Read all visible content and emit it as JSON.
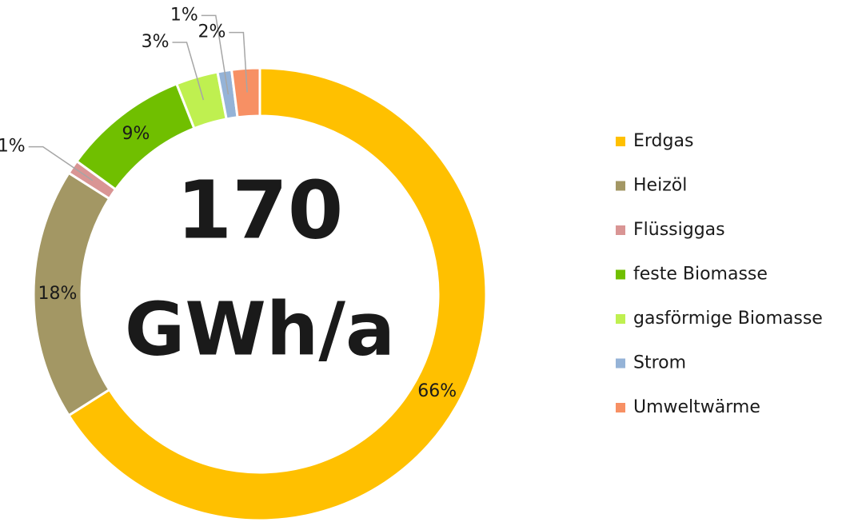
{
  "chart_data": {
    "type": "donut",
    "categories": [
      "Erdgas",
      "Heizöl",
      "Flüssiggas",
      "feste Biomasse",
      "gasförmige Biomasse",
      "Strom",
      "Umweltwärme"
    ],
    "values": [
      66,
      18,
      1,
      9,
      3,
      1,
      2
    ],
    "value_labels": [
      "66%",
      "18%",
      "1%",
      "9%",
      "3%",
      "1%",
      "2%"
    ],
    "colors": [
      "#ffc000",
      "#a39764",
      "#d99594",
      "#70bf00",
      "#bff050",
      "#95b3d7",
      "#f79064"
    ],
    "center_value": 170,
    "center_unit": "GWh/a",
    "legend": "right"
  }
}
